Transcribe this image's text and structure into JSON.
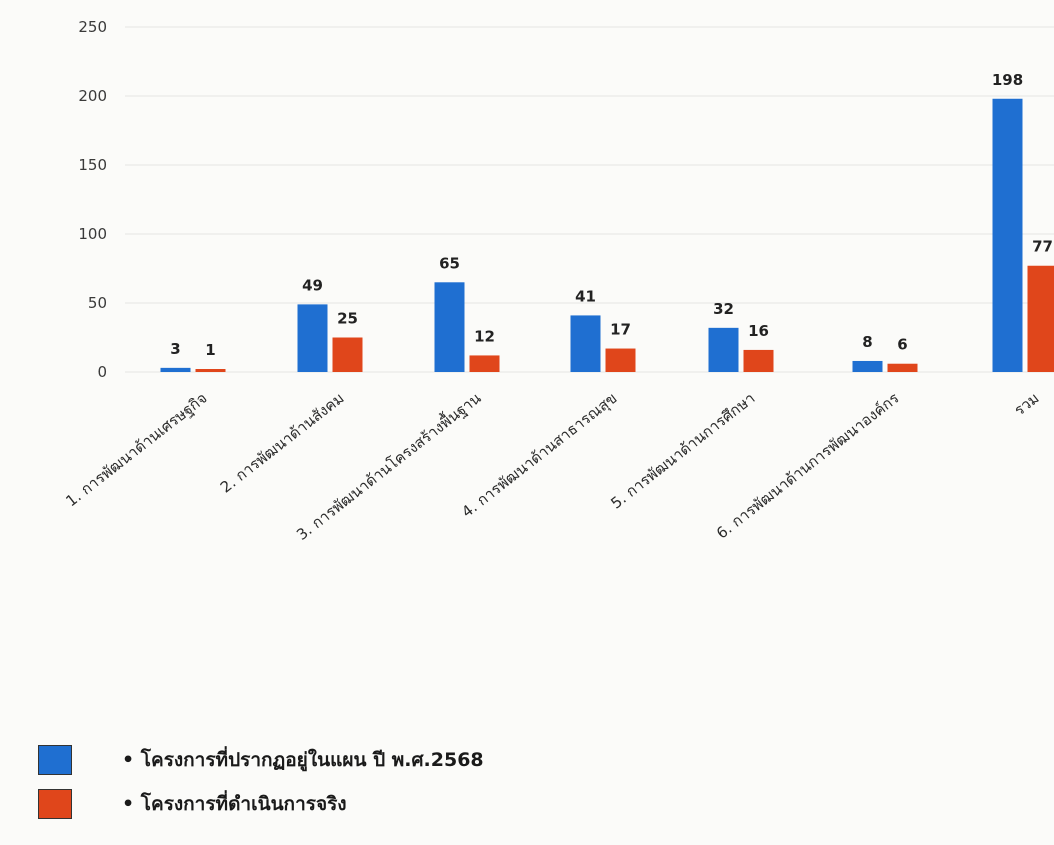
{
  "chart_data": {
    "type": "bar",
    "categories": [
      "1. การพัฒนาด้านเศรษฐกิจ",
      "2. การพัฒนาด้านสังคม",
      "3. การพัฒนาด้านโครงสร้างพื้นฐาน",
      "4. การพัฒนาด้านสาธารณสุข",
      "5. การพัฒนาด้านการศึกษา",
      "6. การพัฒนาด้านการพัฒนาองค์กร",
      "รวม"
    ],
    "series": [
      {
        "name": "โครงการที่ปรากฏอยู่ในแผน ปี พ.ศ.2568",
        "values": [
          3,
          49,
          65,
          41,
          32,
          8,
          198
        ],
        "color": "#1f6fd1"
      },
      {
        "name": "โครงการที่ดำเนินการจริง",
        "values": [
          1,
          25,
          12,
          17,
          16,
          6,
          77
        ],
        "color": "#e0461b"
      }
    ],
    "ylim": [
      0,
      250
    ],
    "yticks": [
      "0",
      "50",
      "100",
      "150",
      "200",
      "250"
    ],
    "grid": true,
    "legend_position": "bottom-left",
    "data_labels": true
  },
  "legend": {
    "items": [
      {
        "marker": "•",
        "label": "โครงการที่ปรากฏอยู่ในแผน ปี พ.ศ.2568",
        "color": "#1f6fd1"
      },
      {
        "marker": "•",
        "label": "โครงการที่ดำเนินการจริง",
        "color": "#e0461b"
      }
    ]
  }
}
